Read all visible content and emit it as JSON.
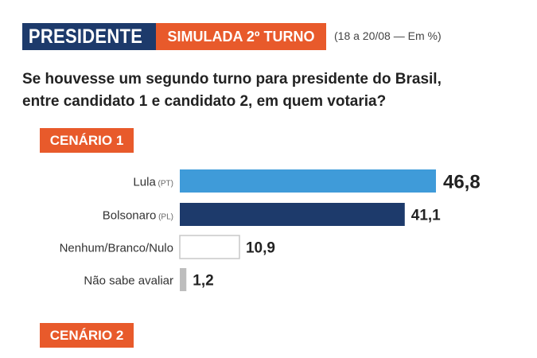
{
  "header": {
    "title": "PRESIDENTE",
    "subtitle": "SIMULADA 2º TURNO",
    "date": "(18 a 20/08 — Em %)"
  },
  "question": {
    "line1": "Se houvesse um segundo turno para presidente do Brasil,",
    "line2": "entre candidato 1 e candidato 2, em quem votaria?"
  },
  "scenarios": [
    "CENÁRIO 1",
    "CENÁRIO 2"
  ],
  "chart_data": {
    "type": "bar",
    "orientation": "horizontal",
    "title": "CENÁRIO 1",
    "categories": [
      {
        "name": "Lula",
        "party": "(PT)"
      },
      {
        "name": "Bolsonaro",
        "party": "(PL)"
      },
      {
        "name": "Nenhum/Branco/Nulo",
        "party": ""
      },
      {
        "name": "Não sabe avaliar",
        "party": ""
      }
    ],
    "values": [
      46.8,
      41.1,
      10.9,
      1.2
    ],
    "value_labels": [
      "46,8",
      "41,1",
      "10,9",
      "1,2"
    ],
    "colors": [
      "#3f9bd9",
      "#1d3a6b",
      "#ffffff",
      "#bdbdbd"
    ],
    "unit": "%",
    "grid": false
  }
}
